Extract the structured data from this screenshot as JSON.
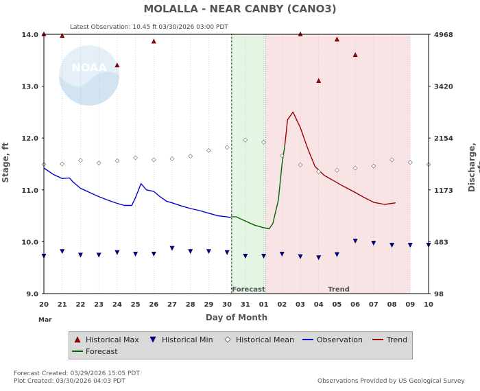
{
  "chart_data": {
    "type": "line",
    "title": "MOLALLA - NEAR CANBY  (CANO3)",
    "subtitle": "Latest Observation: 10.45 ft 03/30/2026 03:00 PDT",
    "xlabel": "Day of Month",
    "month_label": "Mar",
    "ylabel_left": "Stage, ft",
    "ylabel_right": "Discharge, cfs",
    "x_ticks": [
      "20",
      "21",
      "22",
      "23",
      "24",
      "25",
      "26",
      "27",
      "28",
      "29",
      "30",
      "31",
      "01",
      "02",
      "03",
      "04",
      "05",
      "06",
      "07",
      "08",
      "09",
      "10"
    ],
    "y_left_ticks": [
      "14.0",
      "13.0",
      "12.0",
      "11.0",
      "10.0",
      "9.0"
    ],
    "y_left_range": [
      9.0,
      14.0
    ],
    "y_right_ticks": [
      "4968",
      "3420",
      "2154",
      "1173",
      "483",
      "98"
    ],
    "grid": "vertical dotted at day boundaries",
    "region_labels": {
      "forecast": "Forecast",
      "trend": "Trend"
    },
    "regions": {
      "forecast": [
        30.25,
        32.1
      ],
      "trend": [
        32.1,
        40
      ]
    },
    "colors": {
      "observation": "#0000cc",
      "forecast": "#006600",
      "trend": "#990000",
      "max": "#aa0000",
      "min": "#000099",
      "forecast_bg": "#e4f5e4",
      "trend_bg": "#f8e4e4"
    },
    "series": [
      {
        "name": "Observation",
        "key": "obs",
        "points": [
          [
            20,
            11.42
          ],
          [
            20.5,
            11.3
          ],
          [
            21,
            11.22
          ],
          [
            21.4,
            11.23
          ],
          [
            21.6,
            11.15
          ],
          [
            22,
            11.03
          ],
          [
            22.5,
            10.95
          ],
          [
            23,
            10.87
          ],
          [
            23.5,
            10.8
          ],
          [
            24,
            10.74
          ],
          [
            24.4,
            10.7
          ],
          [
            24.8,
            10.7
          ],
          [
            25,
            10.85
          ],
          [
            25.3,
            11.12
          ],
          [
            25.6,
            11.0
          ],
          [
            26,
            10.97
          ],
          [
            26.3,
            10.88
          ],
          [
            26.7,
            10.78
          ],
          [
            27,
            10.75
          ],
          [
            27.5,
            10.69
          ],
          [
            28,
            10.64
          ],
          [
            28.5,
            10.6
          ],
          [
            29,
            10.55
          ],
          [
            29.5,
            10.5
          ],
          [
            30,
            10.48
          ],
          [
            30.2,
            10.46
          ]
        ]
      },
      {
        "name": "Forecast",
        "key": "fcst",
        "points": [
          [
            30.2,
            10.48
          ],
          [
            30.5,
            10.48
          ],
          [
            31,
            10.4
          ],
          [
            31.5,
            10.32
          ],
          [
            32,
            10.27
          ],
          [
            32.3,
            10.25
          ],
          [
            32.5,
            10.35
          ],
          [
            32.8,
            10.8
          ],
          [
            33,
            11.5
          ],
          [
            33.15,
            11.85
          ]
        ]
      },
      {
        "name": "Trend",
        "key": "trend",
        "points": [
          [
            33.15,
            11.85
          ],
          [
            33.3,
            12.35
          ],
          [
            33.6,
            12.5
          ],
          [
            34,
            12.2
          ],
          [
            34.4,
            11.8
          ],
          [
            34.8,
            11.45
          ],
          [
            35.3,
            11.28
          ],
          [
            35.8,
            11.18
          ],
          [
            36.3,
            11.08
          ],
          [
            37,
            10.95
          ],
          [
            37.5,
            10.85
          ],
          [
            38,
            10.76
          ],
          [
            38.6,
            10.72
          ],
          [
            39.2,
            10.75
          ]
        ]
      },
      {
        "name": "Historical Max",
        "key": "hmax",
        "marker": "triangle-up",
        "points": [
          [
            20,
            14.0
          ],
          [
            21,
            13.97
          ],
          [
            24,
            13.4
          ],
          [
            26,
            13.86
          ],
          [
            34,
            14.0
          ],
          [
            35,
            13.1
          ],
          [
            36,
            13.9
          ],
          [
            37,
            13.6
          ]
        ]
      },
      {
        "name": "Historical Min",
        "key": "hmin",
        "marker": "triangle-down",
        "points": [
          [
            20,
            9.73
          ],
          [
            21,
            9.82
          ],
          [
            22,
            9.75
          ],
          [
            23,
            9.75
          ],
          [
            24,
            9.8
          ],
          [
            25,
            9.77
          ],
          [
            26,
            9.77
          ],
          [
            27,
            9.88
          ],
          [
            28,
            9.82
          ],
          [
            29,
            9.82
          ],
          [
            30,
            9.8
          ],
          [
            31,
            9.73
          ],
          [
            32,
            9.73
          ],
          [
            33,
            9.77
          ],
          [
            34,
            9.72
          ],
          [
            35,
            9.7
          ],
          [
            36,
            9.76
          ],
          [
            37,
            10.02
          ],
          [
            38,
            9.98
          ],
          [
            39,
            9.94
          ],
          [
            40,
            9.94
          ],
          [
            41,
            9.94
          ]
        ]
      },
      {
        "name": "Historical Mean",
        "key": "hmean",
        "marker": "diamond",
        "points": [
          [
            20,
            11.49
          ],
          [
            21,
            11.5
          ],
          [
            22,
            11.57
          ],
          [
            23,
            11.52
          ],
          [
            24,
            11.56
          ],
          [
            25,
            11.62
          ],
          [
            26,
            11.58
          ],
          [
            27,
            11.6
          ],
          [
            28,
            11.65
          ],
          [
            29,
            11.76
          ],
          [
            30,
            11.82
          ],
          [
            31,
            11.96
          ],
          [
            32,
            11.92
          ],
          [
            33,
            11.66
          ],
          [
            34,
            11.48
          ],
          [
            35,
            11.35
          ],
          [
            36,
            11.38
          ],
          [
            37,
            11.42
          ],
          [
            38,
            11.46
          ],
          [
            39,
            11.58
          ],
          [
            40,
            11.53
          ],
          [
            41,
            11.49
          ]
        ]
      }
    ]
  },
  "legend": {
    "max": "Historical Max",
    "min": "Historical Min",
    "mean": "Historical Mean",
    "obs": "Observation",
    "trend": "Trend",
    "fcst": "Forecast"
  },
  "footer": {
    "forecast_created": "Forecast Created: 03/29/2026 15:05 PDT",
    "plot_created": "Plot Created: 03/30/2026 04:03 PDT",
    "credit": "Observations Provided by US Geological Survey"
  },
  "logo": {
    "text": "NOAA"
  }
}
